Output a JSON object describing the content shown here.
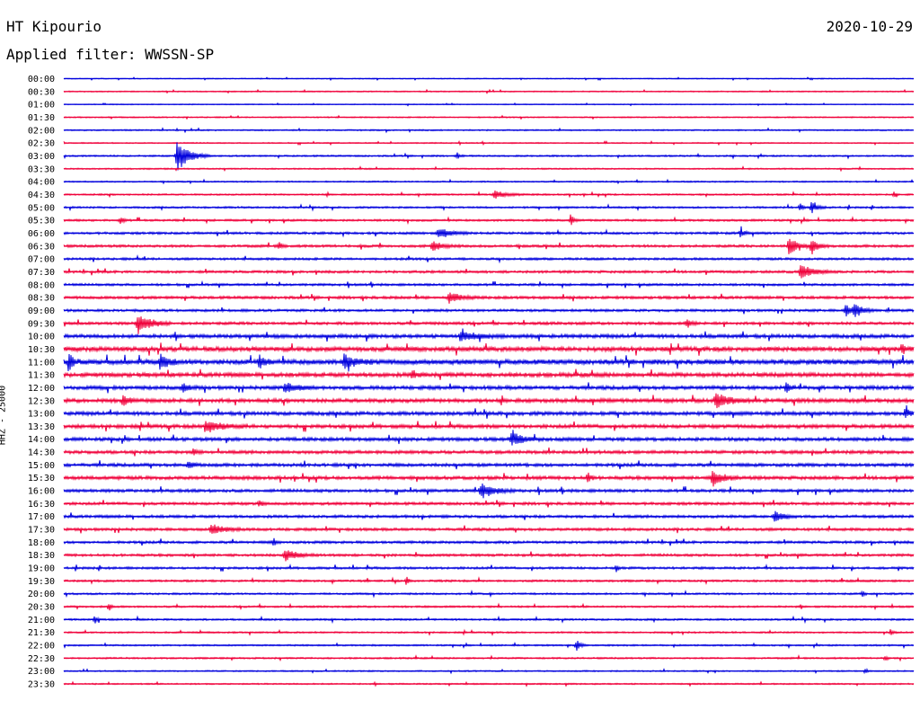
{
  "header": {
    "station": "HT Kipourio",
    "date": "2020-10-29",
    "filter": "Applied filter: WWSSN-SP"
  },
  "axis_label": "HHZ - 25000",
  "colors": {
    "blue": "#0000dd",
    "red": "#f0003a",
    "text": "#000000",
    "background": "#ffffff"
  },
  "chart_data": {
    "type": "line",
    "subtype": "helicorder",
    "title": "HT Kipourio",
    "ylabel": "HHZ - 25000",
    "trace_colors_alternate": [
      "#0000dd",
      "#f0003a"
    ],
    "row_labels": [
      "00:00",
      "00:30",
      "01:00",
      "01:30",
      "02:00",
      "02:30",
      "03:00",
      "03:30",
      "04:00",
      "04:30",
      "05:00",
      "05:30",
      "06:00",
      "06:30",
      "07:00",
      "07:30",
      "08:00",
      "08:30",
      "09:00",
      "09:30",
      "10:00",
      "10:30",
      "11:00",
      "11:30",
      "12:00",
      "12:30",
      "13:00",
      "13:30",
      "14:00",
      "14:30",
      "15:00",
      "15:30",
      "16:00",
      "16:30",
      "17:00",
      "17:30",
      "18:00",
      "18:30",
      "19:00",
      "19:30",
      "20:00",
      "20:30",
      "21:00",
      "21:30",
      "22:00",
      "22:30",
      "23:00",
      "23:30"
    ],
    "row_noise": [
      0.4,
      0.5,
      0.4,
      0.5,
      0.6,
      0.5,
      0.7,
      0.6,
      0.6,
      0.7,
      0.8,
      0.9,
      1.0,
      1.1,
      1.0,
      1.1,
      1.0,
      1.2,
      1.1,
      1.2,
      1.6,
      2.0,
      2.2,
      1.8,
      1.6,
      1.7,
      1.6,
      1.6,
      1.5,
      1.4,
      1.4,
      1.5,
      1.3,
      1.2,
      1.2,
      1.2,
      1.1,
      1.1,
      1.0,
      0.9,
      0.8,
      0.8,
      0.8,
      0.7,
      0.7,
      0.7,
      0.6,
      0.6
    ],
    "events": [
      {
        "row": 6,
        "minute": 4.0,
        "amp": 16,
        "dur": 1.2
      },
      {
        "row": 6,
        "minute": 13.9,
        "amp": 4,
        "dur": 0.2
      },
      {
        "row": 9,
        "minute": 15.2,
        "amp": 4,
        "dur": 1.2
      },
      {
        "row": 9,
        "minute": 29.3,
        "amp": 3,
        "dur": 0.2
      },
      {
        "row": 10,
        "minute": 26.0,
        "amp": 4,
        "dur": 0.3
      },
      {
        "row": 10,
        "minute": 26.4,
        "amp": 6,
        "dur": 0.5
      },
      {
        "row": 11,
        "minute": 2.0,
        "amp": 5,
        "dur": 0.3
      },
      {
        "row": 11,
        "minute": 17.9,
        "amp": 6,
        "dur": 0.3
      },
      {
        "row": 12,
        "minute": 13.2,
        "amp": 6,
        "dur": 1.2
      },
      {
        "row": 12,
        "minute": 23.9,
        "amp": 5,
        "dur": 0.3
      },
      {
        "row": 13,
        "minute": 7.6,
        "amp": 4,
        "dur": 0.3
      },
      {
        "row": 13,
        "minute": 13.0,
        "amp": 5,
        "dur": 1.0
      },
      {
        "row": 13,
        "minute": 25.6,
        "amp": 9,
        "dur": 0.9
      },
      {
        "row": 13,
        "minute": 26.4,
        "amp": 9,
        "dur": 0.6
      },
      {
        "row": 15,
        "minute": 26.0,
        "amp": 8,
        "dur": 1.2
      },
      {
        "row": 17,
        "minute": 13.6,
        "amp": 6,
        "dur": 1.0
      },
      {
        "row": 18,
        "minute": 27.6,
        "amp": 6,
        "dur": 0.5
      },
      {
        "row": 18,
        "minute": 27.9,
        "amp": 8,
        "dur": 0.8
      },
      {
        "row": 19,
        "minute": 2.6,
        "amp": 11,
        "dur": 1.2
      },
      {
        "row": 19,
        "minute": 22.0,
        "amp": 4,
        "dur": 0.5
      },
      {
        "row": 20,
        "minute": 14.0,
        "amp": 5,
        "dur": 1.5
      },
      {
        "row": 21,
        "minute": 29.6,
        "amp": 6,
        "dur": 0.3
      },
      {
        "row": 22,
        "minute": 0.2,
        "amp": 8,
        "dur": 0.4
      },
      {
        "row": 22,
        "minute": 3.4,
        "amp": 8,
        "dur": 0.8
      },
      {
        "row": 22,
        "minute": 6.9,
        "amp": 7,
        "dur": 0.5
      },
      {
        "row": 22,
        "minute": 9.9,
        "amp": 8,
        "dur": 1.0
      },
      {
        "row": 23,
        "minute": 12.3,
        "amp": 4,
        "dur": 0.6
      },
      {
        "row": 24,
        "minute": 4.2,
        "amp": 6,
        "dur": 0.5
      },
      {
        "row": 24,
        "minute": 7.8,
        "amp": 5,
        "dur": 1.2
      },
      {
        "row": 24,
        "minute": 25.5,
        "amp": 5,
        "dur": 0.4
      },
      {
        "row": 25,
        "minute": 2.1,
        "amp": 6,
        "dur": 0.5
      },
      {
        "row": 25,
        "minute": 23.0,
        "amp": 7,
        "dur": 1.5
      },
      {
        "row": 26,
        "minute": 29.7,
        "amp": 5,
        "dur": 0.5
      },
      {
        "row": 27,
        "minute": 5.0,
        "amp": 6,
        "dur": 1.5
      },
      {
        "row": 28,
        "minute": 15.8,
        "amp": 8,
        "dur": 1.0
      },
      {
        "row": 29,
        "minute": 4.6,
        "amp": 4,
        "dur": 0.3
      },
      {
        "row": 30,
        "minute": 4.4,
        "amp": 4,
        "dur": 0.5
      },
      {
        "row": 31,
        "minute": 18.5,
        "amp": 6,
        "dur": 0.3
      },
      {
        "row": 31,
        "minute": 22.9,
        "amp": 8,
        "dur": 1.0
      },
      {
        "row": 32,
        "minute": 14.7,
        "amp": 9,
        "dur": 1.2
      },
      {
        "row": 33,
        "minute": 6.9,
        "amp": 4,
        "dur": 0.3
      },
      {
        "row": 34,
        "minute": 25.1,
        "amp": 6,
        "dur": 0.8
      },
      {
        "row": 35,
        "minute": 5.2,
        "amp": 6,
        "dur": 1.2
      },
      {
        "row": 36,
        "minute": 7.4,
        "amp": 4,
        "dur": 0.3
      },
      {
        "row": 37,
        "minute": 7.8,
        "amp": 6,
        "dur": 1.2
      },
      {
        "row": 38,
        "minute": 19.5,
        "amp": 4,
        "dur": 0.2
      },
      {
        "row": 39,
        "minute": 12.1,
        "amp": 4,
        "dur": 0.2
      },
      {
        "row": 40,
        "minute": 28.2,
        "amp": 3,
        "dur": 0.2
      },
      {
        "row": 41,
        "minute": 1.6,
        "amp": 4,
        "dur": 0.2
      },
      {
        "row": 42,
        "minute": 1.1,
        "amp": 4,
        "dur": 0.2
      },
      {
        "row": 43,
        "minute": 29.2,
        "amp": 4,
        "dur": 0.2
      },
      {
        "row": 44,
        "minute": 18.1,
        "amp": 6,
        "dur": 0.4
      },
      {
        "row": 45,
        "minute": 29.0,
        "amp": 3,
        "dur": 0.2
      },
      {
        "row": 46,
        "minute": 28.3,
        "amp": 3,
        "dur": 0.2
      }
    ]
  }
}
